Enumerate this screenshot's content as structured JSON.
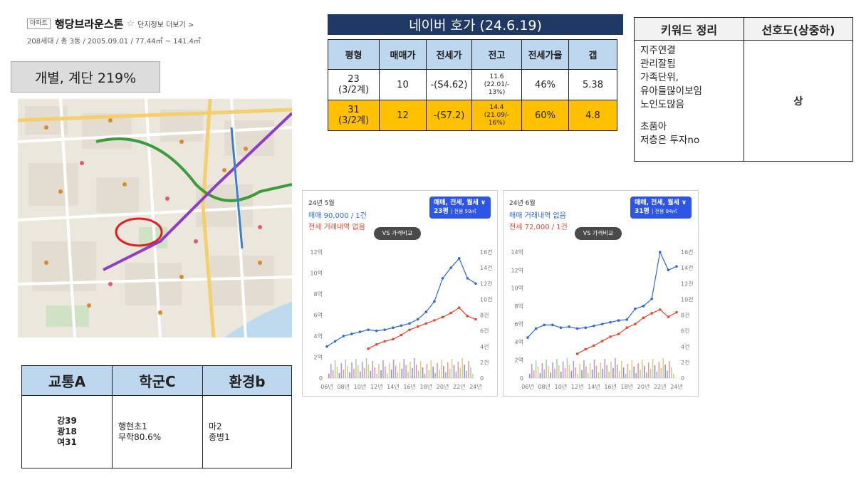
{
  "header": {
    "tag": "아파트",
    "name": "행당브라운스톤",
    "star": "☆",
    "more": "단지정보 더보기 >",
    "sub": "208세대 / 총 3동 / 2005.09.01 / 77.44㎡ ~ 141.4㎡"
  },
  "ratio_label": "개별, 계단 219%",
  "naver": {
    "title": "네이버 호가 (24.6.19)",
    "headers": [
      "평형",
      "매매가",
      "전세가",
      "전고",
      "전세가율",
      "갭"
    ],
    "rows": [
      {
        "pyeong": "23\n(3/2계)",
        "sale": "10",
        "jeonse": "-(S4.62)",
        "peak": "11.6\n(22.01/-\n13%)",
        "rate": "46%",
        "gap": "5.38"
      },
      {
        "pyeong": "31\n(3/2계)",
        "sale": "12",
        "jeonse": "-(S7.2)",
        "peak": "14.4\n(21.09/-\n16%)",
        "rate": "60%",
        "gap": "4.8"
      }
    ]
  },
  "keywords": {
    "header_keyword": "키워드 정리",
    "header_pref": "선호도(상중하)",
    "lines": [
      "지주연결",
      "관리잘됨",
      "가족단위,",
      "유아들많이보임",
      "노인도많음",
      "",
      "초품아",
      "저층은 투자no"
    ],
    "preference": "상"
  },
  "tsh": {
    "headers": [
      "교통A",
      "학군C",
      "환경b"
    ],
    "transport": [
      "강39",
      "광18",
      "여31"
    ],
    "school": [
      "행현초1",
      "무학80.6%"
    ],
    "environment": [
      "마2",
      "종병1"
    ]
  },
  "charts": [
    {
      "month": "24년 5월",
      "sale": "매매 90,000 / 1건",
      "rent": "전세 거래내역 없음",
      "btn_line1": "매매, 전세, 월세 ∨",
      "btn_line2": "23평",
      "btn_line2b": "| 전용 59㎡",
      "vs": "VS 가격비교",
      "sale_color": "#2a6ad6",
      "rent_color": "#e8462d",
      "y_left_max": 12,
      "y_right_max": 16
    },
    {
      "month": "24년 6월",
      "sale": "매매 거래내역 없음",
      "rent": "전세 72,000 / 1건",
      "btn_line1": "매매, 전세, 월세 ∨",
      "btn_line2": "31평",
      "btn_line2b": "| 전용 84㎡",
      "vs": "VS 가격비교",
      "sale_color": "#2a6ad6",
      "rent_color": "#e8462d",
      "y_left_max": 14,
      "y_right_max": 16
    }
  ],
  "chart_data": [
    {
      "type": "line",
      "x": [
        "06년",
        "07년",
        "08년",
        "09년",
        "10년",
        "11년",
        "12년",
        "13년",
        "14년",
        "15년",
        "16년",
        "17년",
        "18년",
        "19년",
        "20년",
        "21년",
        "22년",
        "23년",
        "24년"
      ],
      "series": [
        {
          "name": "매매",
          "values": [
            3.0,
            3.5,
            4.0,
            4.2,
            4.4,
            4.6,
            4.5,
            4.6,
            4.8,
            5.0,
            5.2,
            5.6,
            6.3,
            7.3,
            9.5,
            10.5,
            11.4,
            9.5,
            9.0
          ]
        },
        {
          "name": "전세",
          "values": [
            null,
            null,
            null,
            null,
            null,
            2.8,
            3.2,
            3.5,
            3.7,
            4.1,
            4.6,
            4.9,
            5.2,
            5.5,
            5.8,
            6.2,
            6.7,
            5.9,
            5.6
          ]
        }
      ],
      "x_tick_labels": [
        "06년",
        "08년",
        "10년",
        "12년",
        "14년",
        "16년",
        "18년",
        "20년",
        "22년",
        "24년"
      ],
      "y_tick_labels": [
        "0",
        "2억",
        "4억",
        "6억",
        "8억",
        "10억",
        "12억"
      ],
      "y2_tick_labels": [
        "0",
        "2건",
        "4건",
        "6건",
        "8건",
        "10건",
        "12건",
        "14건",
        "16건"
      ],
      "ylim": [
        0,
        12
      ],
      "y2lim": [
        0,
        16
      ]
    },
    {
      "type": "line",
      "x": [
        "06년",
        "07년",
        "08년",
        "09년",
        "10년",
        "11년",
        "12년",
        "13년",
        "14년",
        "15년",
        "16년",
        "17년",
        "18년",
        "19년",
        "20년",
        "21年",
        "22년",
        "23년",
        "24년"
      ],
      "series": [
        {
          "name": "매매",
          "values": [
            4.5,
            5.5,
            5.9,
            5.9,
            5.6,
            5.7,
            5.5,
            5.6,
            5.8,
            6.0,
            6.2,
            6.4,
            6.5,
            7.7,
            8.0,
            8.8,
            14.0,
            12.0,
            12.4
          ]
        },
        {
          "name": "전세",
          "values": [
            null,
            null,
            null,
            null,
            null,
            null,
            2.7,
            3.2,
            3.6,
            4.1,
            4.6,
            4.9,
            5.6,
            6.0,
            6.7,
            7.2,
            7.6,
            6.8,
            7.3
          ]
        }
      ],
      "x_tick_labels": [
        "06년",
        "08년",
        "10년",
        "12년",
        "14년",
        "16년",
        "18년",
        "20년",
        "22년",
        "24년"
      ],
      "y_tick_labels": [
        "0",
        "2억",
        "4억",
        "6억",
        "8억",
        "10억",
        "12억",
        "14억"
      ],
      "y2_tick_labels": [
        "0",
        "2건",
        "4건",
        "6건",
        "8건",
        "10건",
        "12건",
        "14건",
        "16건"
      ],
      "ylim": [
        0,
        14
      ],
      "y2lim": [
        0,
        16
      ]
    }
  ]
}
